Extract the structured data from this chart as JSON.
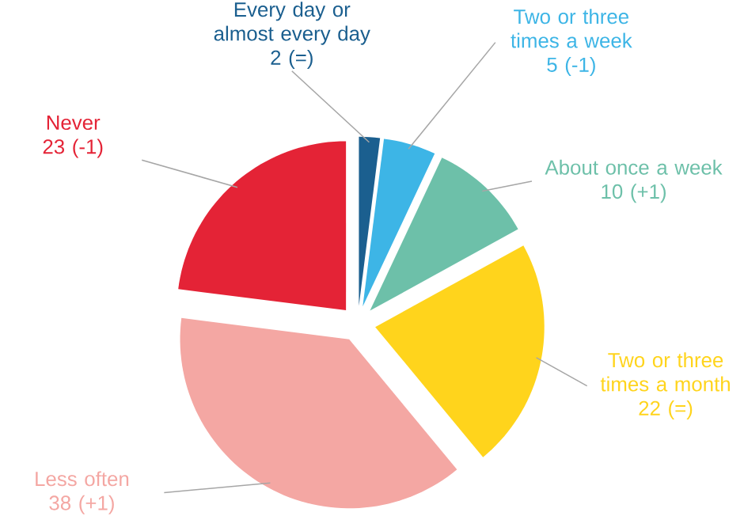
{
  "chart_data": {
    "type": "pie",
    "categories": [
      "Every day or almost every day",
      "Two or three times a week",
      "About once a week",
      "Two or three times a month",
      "Less often",
      "Never"
    ],
    "values": [
      2,
      5,
      10,
      22,
      38,
      23
    ],
    "value_labels": [
      "2 (=)",
      "5 (-1)",
      "10 (+1)",
      "22 (=)",
      "38 (+1)",
      "23 (-1)"
    ],
    "colors": [
      "#1b5f8f",
      "#3db5e6",
      "#6dc0a9",
      "#ffd41c",
      "#f4a7a3",
      "#e42336"
    ]
  }
}
